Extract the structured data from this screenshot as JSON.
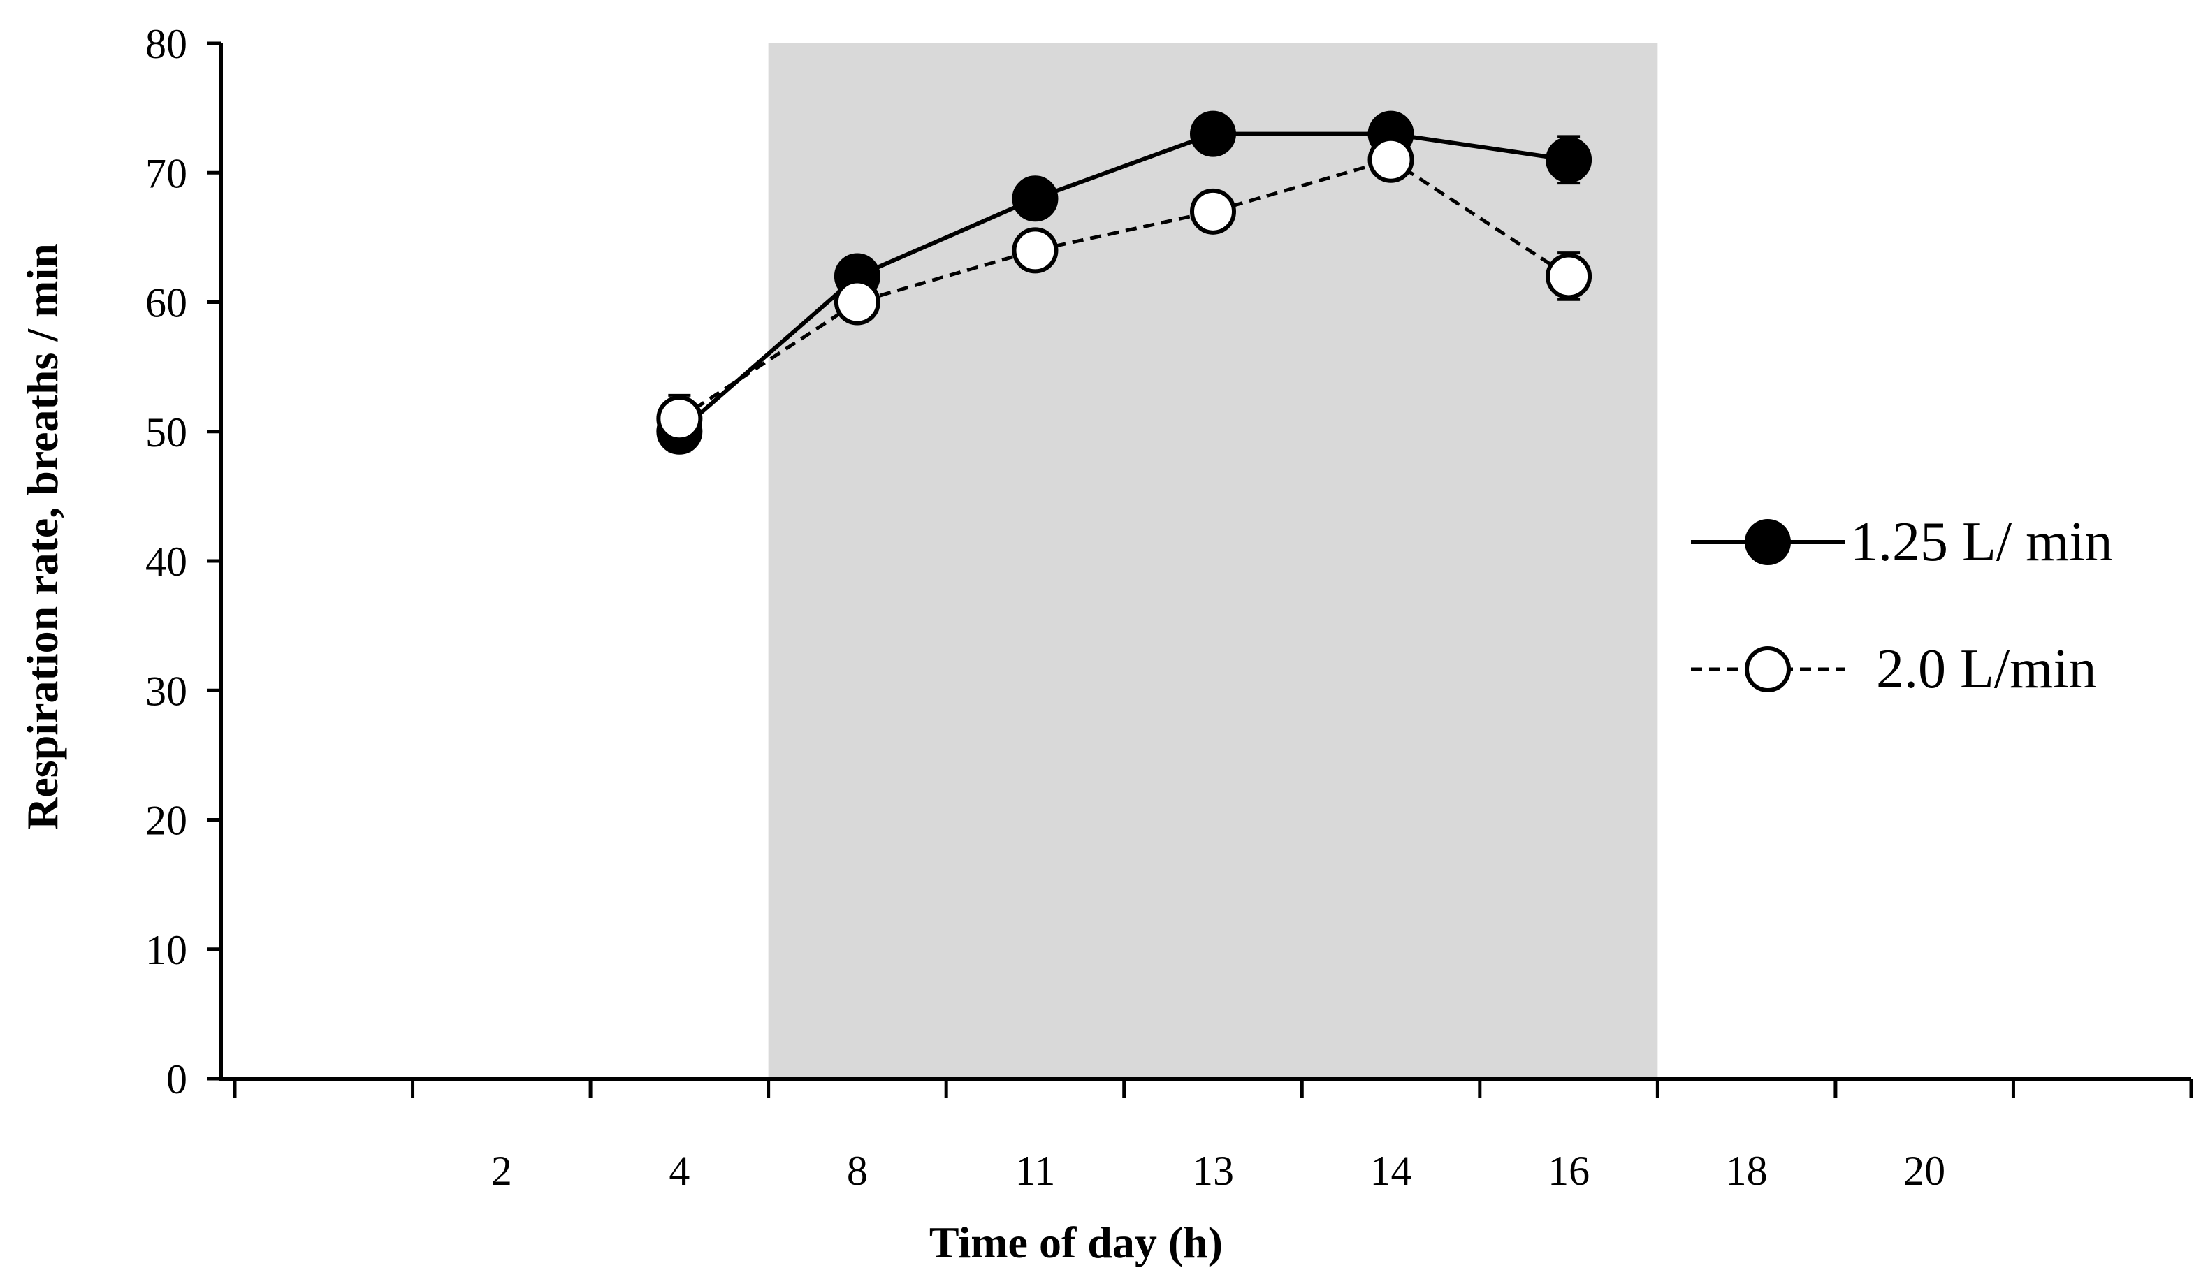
{
  "chart_data": {
    "type": "line",
    "title": "",
    "xlabel": "Time of day  (h)",
    "ylabel": "Respiration rate, breaths / min",
    "categories": [
      "",
      "2",
      "4",
      "8",
      "11",
      "13",
      "14",
      "16",
      "18",
      "20",
      ""
    ],
    "ylim": [
      0,
      80
    ],
    "yticks": [
      0,
      10,
      20,
      30,
      40,
      50,
      60,
      70,
      80
    ],
    "yticks_labels": [
      "0",
      "10",
      "20",
      "30",
      "40",
      "50",
      "60",
      "70",
      "80"
    ],
    "shaded_region": {
      "from_category": "4",
      "to_category": "16",
      "color": "#d9d9d9"
    },
    "grid": false,
    "legend_position": "right",
    "series": [
      {
        "name": "1.25 L/ min",
        "marker": "filled-circle",
        "line_style": "solid",
        "x": [
          "4",
          "8",
          "11",
          "13",
          "14",
          "16"
        ],
        "values": [
          50,
          62,
          68,
          73,
          73,
          71
        ],
        "errors": [
          1.5,
          0.8,
          0.8,
          0.8,
          0.8,
          1.8
        ]
      },
      {
        "name": "2.0 L/min",
        "marker": "open-circle",
        "line_style": "dashed",
        "x": [
          "4",
          "8",
          "11",
          "13",
          "14",
          "16"
        ],
        "values": [
          51,
          60,
          64,
          67,
          71,
          62
        ],
        "errors": [
          1.8,
          0.8,
          0.8,
          0.8,
          0.8,
          1.8
        ]
      }
    ]
  }
}
